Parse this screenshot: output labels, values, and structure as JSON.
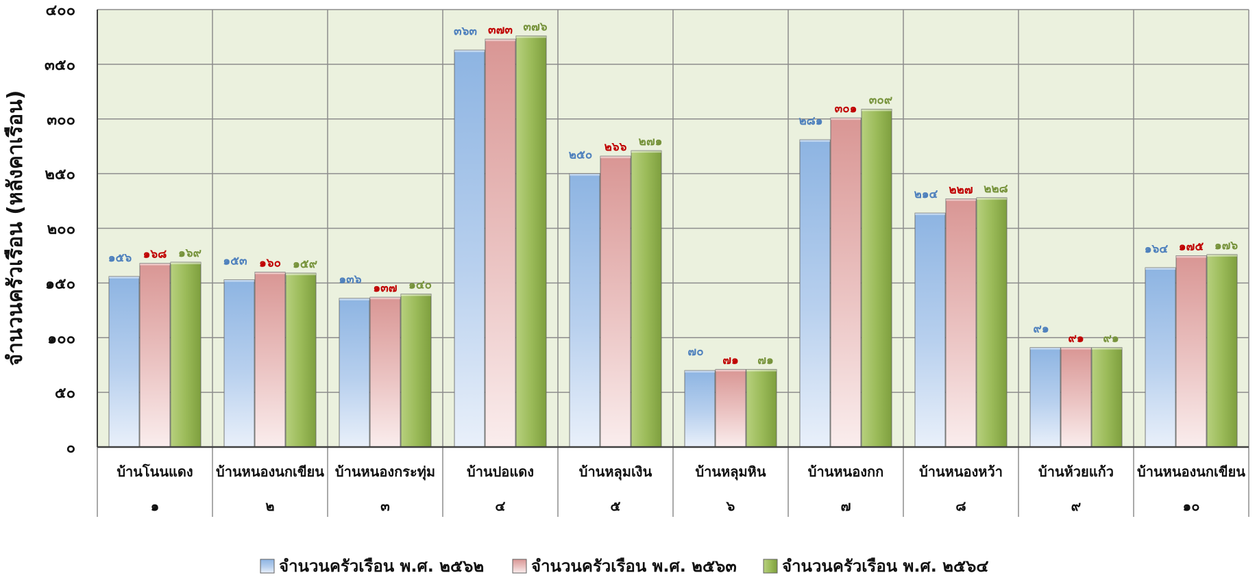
{
  "chart_data": {
    "type": "bar",
    "ylabel": "จำนวนครัวเรือน (หลังคาเรือน)",
    "xlabel": "",
    "ylim": [
      0,
      400
    ],
    "yticks": [
      "๐",
      "๕๐",
      "๑๐๐",
      "๑๕๐",
      "๒๐๐",
      "๒๕๐",
      "๓๐๐",
      "๓๕๐",
      "๔๐๐"
    ],
    "grid": true,
    "legend_position": "bottom",
    "categories": [
      "บ้านโนนแดง",
      "บ้านหนองนกเขียน",
      "บ้านหนองกระทุ่ม",
      "บ้านปอแดง",
      "บ้านหลุมเงิน",
      "บ้านหลุมหิน",
      "บ้านหนองกก",
      "บ้านหนองหว้า",
      "บ้านห้วยแก้ว",
      "บ้านหนองนกเขียน"
    ],
    "category_numbers": [
      "๑",
      "๒",
      "๓",
      "๔",
      "๕",
      "๖",
      "๗",
      "๘",
      "๙",
      "๑๐"
    ],
    "series": [
      {
        "name": "จำนวนครัวเรือน พ.ศ. ๒๕๖๒",
        "values": [
          156,
          153,
          136,
          363,
          250,
          70,
          281,
          214,
          91,
          164
        ],
        "labels": [
          "๑๕๖",
          "๑๕๓",
          "๑๓๖",
          "๓๖๓",
          "๒๕๐",
          "๗๐",
          "๒๘๑",
          "๒๑๔",
          "๙๑",
          "๑๖๔"
        ],
        "color": "#8DB4E2",
        "label_color": "#4F81BD"
      },
      {
        "name": "จำนวนครัวเรือน พ.ศ. ๒๕๖๓",
        "values": [
          168,
          160,
          137,
          373,
          266,
          71,
          301,
          227,
          91,
          175
        ],
        "labels": [
          "๑๖๘",
          "๑๖๐",
          "๑๓๗",
          "๓๗๓",
          "๒๖๖",
          "๗๑",
          "๓๐๑",
          "๒๒๗",
          "๙๑",
          "๑๗๕"
        ],
        "color": "#E6B0B0",
        "label_color": "#C00000"
      },
      {
        "name": "จำนวนครัวเรือน พ.ศ. ๒๕๖๔",
        "values": [
          169,
          159,
          140,
          376,
          271,
          71,
          309,
          228,
          91,
          176
        ],
        "labels": [
          "๑๖๙",
          "๑๕๙",
          "๑๔๐",
          "๓๗๖",
          "๒๗๑",
          "๗๑",
          "๓๐๙",
          "๒๒๘",
          "๙๑",
          "๑๗๖"
        ],
        "color": "#9BBB59",
        "label_color": "#77933C"
      }
    ],
    "plot_background": "#EBF1DE",
    "grid_color": "#8C8C8C"
  }
}
